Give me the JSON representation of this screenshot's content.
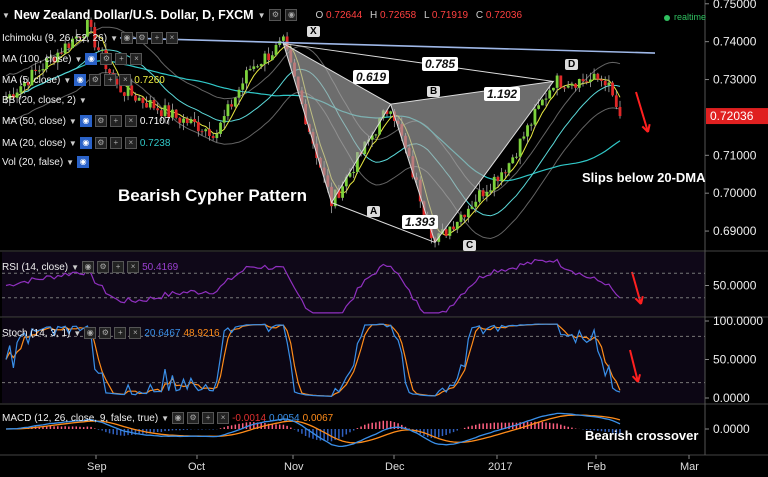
{
  "header": {
    "title": "New Zealand Dollar/U.S. Dollar, D, FXCM",
    "ohlc": [
      {
        "label": "O",
        "value": "0.72644"
      },
      {
        "label": "H",
        "value": "0.72658"
      },
      {
        "label": "L",
        "value": "0.71919"
      },
      {
        "label": "C",
        "value": "0.72036"
      }
    ],
    "status": "realtime"
  },
  "indicators": [
    {
      "label": "Ichimoku (9, 26, 52, 26)",
      "value": ""
    },
    {
      "label": "MA (100, close)",
      "value": ""
    },
    {
      "label": "MA (5, close)",
      "value": "0.7260"
    },
    {
      "label": "BB (20, close, 2)",
      "value": ""
    },
    {
      "label": "MA (50, close)",
      "value": "0.7107"
    },
    {
      "label": "MA (20, close)",
      "value": "0.7238"
    },
    {
      "label": "Vol (20, false)",
      "value": ""
    }
  ],
  "annotations": {
    "pattern_title": "Bearish Cypher Pattern",
    "slips": "Slips below 20-DMA",
    "macd_note": "Bearish crossover",
    "points": [
      "X",
      "A",
      "B",
      "C",
      "D"
    ],
    "ratios": [
      "0.619",
      "0.785",
      "1.192",
      "1.393"
    ]
  },
  "chart_data": [
    {
      "type": "candlestick",
      "title": "New Zealand Dollar/U.S. Dollar, D, FXCM",
      "x_tick_labels": [
        "Sep",
        "Oct",
        "Nov",
        "Dec",
        "2017",
        "Feb",
        "Mar"
      ],
      "y_ticks": [
        "0.75000",
        "0.74000",
        "0.73000",
        "0.72036",
        "0.71000",
        "0.70000",
        "0.69000"
      ],
      "ylim": [
        0.685,
        0.751
      ],
      "last_price": 0.72036,
      "last_price_color": "#e02020",
      "pattern_points": [
        {
          "label": "X",
          "price": 0.7395
        },
        {
          "label": "A",
          "price": 0.6975
        },
        {
          "label": "B",
          "price": 0.7235
        },
        {
          "label": "C",
          "price": 0.687
        },
        {
          "label": "D",
          "price": 0.7295
        }
      ]
    },
    {
      "type": "line",
      "title": "RSI (14, close)",
      "value_label": "50.4169",
      "y_ticks": [
        "50.0000"
      ],
      "ylim": [
        0,
        100
      ],
      "levels": [
        30,
        70
      ],
      "series_color": "#9030c0"
    },
    {
      "type": "line",
      "title": "Stoch (14, 3, 1)",
      "value_labels": [
        "20.6467",
        "48.9216"
      ],
      "y_ticks": [
        "100.0000",
        "50.0000",
        "0.0000"
      ],
      "ylim": [
        0,
        100
      ],
      "levels": [
        20,
        80
      ],
      "series_colors": [
        "#3a8fe8",
        "#ff8c1a"
      ]
    },
    {
      "type": "line",
      "title": "MACD (12, 26, close, 9, false, true)",
      "value_labels": [
        "-0.0014",
        "0.0054",
        "0.0067"
      ],
      "value_colors": [
        "#e03030",
        "#3a8fe8",
        "#ff8c1a"
      ],
      "y_ticks": [
        "0.0000"
      ],
      "series_colors": [
        "#3a8fe8",
        "#ff8c1a"
      ]
    }
  ]
}
